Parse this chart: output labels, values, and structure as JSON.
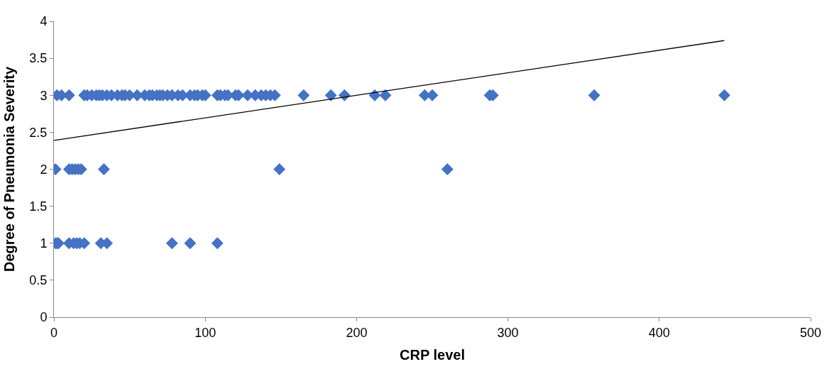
{
  "chart_data": {
    "type": "scatter",
    "xlabel": "CRP level",
    "ylabel": "Degree of Pneumonia Severity",
    "xlim": [
      0,
      500
    ],
    "xticks": [
      0,
      100,
      200,
      300,
      400,
      500
    ],
    "ylim": [
      0,
      4
    ],
    "yticks": [
      0,
      0.5,
      1,
      1.5,
      2,
      2.5,
      3,
      3.5,
      4
    ],
    "marker": "diamond",
    "series": [
      {
        "color": "#4472c4",
        "x": [
          2,
          5,
          10,
          20,
          22,
          25,
          28,
          30,
          32,
          35,
          38,
          42,
          45,
          47,
          50,
          55,
          60,
          63,
          65,
          68,
          70,
          72,
          75,
          78,
          82,
          85,
          90,
          93,
          95,
          98,
          100,
          108,
          110,
          113,
          115,
          120,
          122,
          128,
          133,
          137,
          140,
          143,
          146,
          165,
          183,
          192,
          212,
          219,
          245,
          250,
          288,
          290,
          357,
          443,
          1,
          10,
          12,
          14,
          16,
          18,
          33,
          149,
          260,
          1,
          2,
          3,
          10,
          13,
          15,
          17,
          20,
          31,
          35,
          78,
          90,
          108
        ],
        "values": [
          3,
          3,
          3,
          3,
          3,
          3,
          3,
          3,
          3,
          3,
          3,
          3,
          3,
          3,
          3,
          3,
          3,
          3,
          3,
          3,
          3,
          3,
          3,
          3,
          3,
          3,
          3,
          3,
          3,
          3,
          3,
          3,
          3,
          3,
          3,
          3,
          3,
          3,
          3,
          3,
          3,
          3,
          3,
          3,
          3,
          3,
          3,
          3,
          3,
          3,
          3,
          3,
          3,
          3,
          2,
          2,
          2,
          2,
          2,
          2,
          2,
          2,
          2,
          1,
          1,
          1,
          1,
          1,
          1,
          1,
          1,
          1,
          1,
          1,
          1,
          1
        ]
      },
      {
        "type": "line",
        "color": "#000000",
        "marker": "none",
        "x": [
          0,
          443
        ],
        "values": [
          2.39,
          3.74
        ]
      }
    ]
  }
}
